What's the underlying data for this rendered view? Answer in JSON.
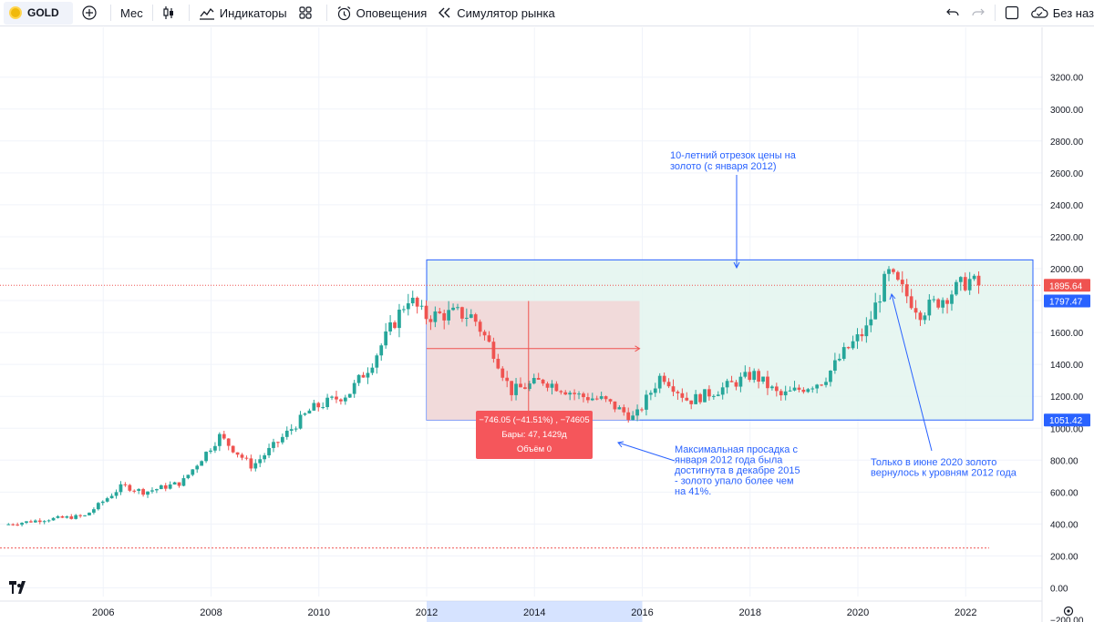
{
  "toolbar": {
    "symbol": "GOLD",
    "interval": "Мес",
    "indicators": "Индикаторы",
    "alerts": "Оповещения",
    "replay": "Симулятор рынка",
    "save_label": "Без наз"
  },
  "annotations": {
    "range_note": "10-летний отрезок цены на золото (с января 2012)",
    "drawdown_note": "Максимальная просадка с января 2012 года была достигнута в декабре 2015 - золото упало более чем на 41%.",
    "recovery_note": "Только в июне 2020 золото вернулось к уровням 2012 года",
    "measure_line1": "−746.05 (−41.51%) , −74605",
    "measure_line2": "Бары: 47, 1429д",
    "measure_line3": "Объём 0"
  },
  "price_labels": {
    "current": "1895.64",
    "upper_level": "1797.47",
    "lower_level": "1051.42"
  },
  "colors": {
    "up": "#26a69a",
    "down": "#ef5350",
    "accent": "#2962ff",
    "range_fill": "#e3f4ef",
    "drawdown_fill": "#f2d7d7"
  },
  "chart_data": {
    "type": "candlestick",
    "interval": "1M",
    "y_ticks": [
      "3200.00",
      "3000.00",
      "2800.00",
      "2600.00",
      "2400.00",
      "2200.00",
      "2000.00",
      "1800.00",
      "1600.00",
      "1400.00",
      "1200.00",
      "1000.00",
      "800.00",
      "600.00",
      "400.00",
      "200.00",
      "0.00",
      "−200.00"
    ],
    "y_tick_values": [
      3200,
      3000,
      2800,
      2600,
      2400,
      2200,
      2000,
      1800,
      1600,
      1400,
      1200,
      1000,
      800,
      600,
      400,
      200,
      0,
      -200
    ],
    "x_ticks": [
      "2006",
      "2008",
      "2010",
      "2012",
      "2014",
      "2016",
      "2018",
      "2020",
      "2022"
    ],
    "x_tick_years": [
      2006,
      2008,
      2010,
      2012,
      2014,
      2016,
      2018,
      2020,
      2022
    ],
    "start_year": 2004.2,
    "ylim": [
      -200,
      3350
    ],
    "xlim": [
      2004.2,
      2024.0
    ],
    "anchors": [
      [
        2004.2,
        395
      ],
      [
        2005.0,
        430
      ],
      [
        2005.7,
        450
      ],
      [
        2006.4,
        640
      ],
      [
        2006.8,
        600
      ],
      [
        2007.5,
        660
      ],
      [
        2008.2,
        950
      ],
      [
        2008.8,
        760
      ],
      [
        2009.3,
        920
      ],
      [
        2009.9,
        1120
      ],
      [
        2010.6,
        1220
      ],
      [
        2011.0,
        1400
      ],
      [
        2011.7,
        1820
      ],
      [
        2012.0,
        1700
      ],
      [
        2012.6,
        1720
      ],
      [
        2012.9,
        1700
      ],
      [
        2013.3,
        1470
      ],
      [
        2013.6,
        1230
      ],
      [
        2014.2,
        1300
      ],
      [
        2014.9,
        1200
      ],
      [
        2015.3,
        1180
      ],
      [
        2015.9,
        1060
      ],
      [
        2016.4,
        1340
      ],
      [
        2016.9,
        1170
      ],
      [
        2017.6,
        1260
      ],
      [
        2018.1,
        1340
      ],
      [
        2018.6,
        1200
      ],
      [
        2019.4,
        1300
      ],
      [
        2019.8,
        1480
      ],
      [
        2020.2,
        1620
      ],
      [
        2020.6,
        1970
      ],
      [
        2021.2,
        1730
      ],
      [
        2021.6,
        1810
      ],
      [
        2022.1,
        1930
      ],
      [
        2022.25,
        1896
      ]
    ],
    "last_price": 1895.64,
    "price_line": 1895.64,
    "low_dashed_line": 250,
    "range_box": {
      "from": 2012.0,
      "to": 2024.05,
      "high": 2055,
      "low": 1051.42
    },
    "drawdown_box": {
      "from": 2012.0,
      "to": 2015.95,
      "high": 1797.47,
      "low": 1051.42
    },
    "drawdown": {
      "change": -746.05,
      "change_pct": -41.51,
      "bars": 47,
      "days": 1429
    },
    "upper_level": 1797.47,
    "lower_level": 1051.42,
    "highlighted_x_range": [
      2012,
      2016
    ]
  }
}
